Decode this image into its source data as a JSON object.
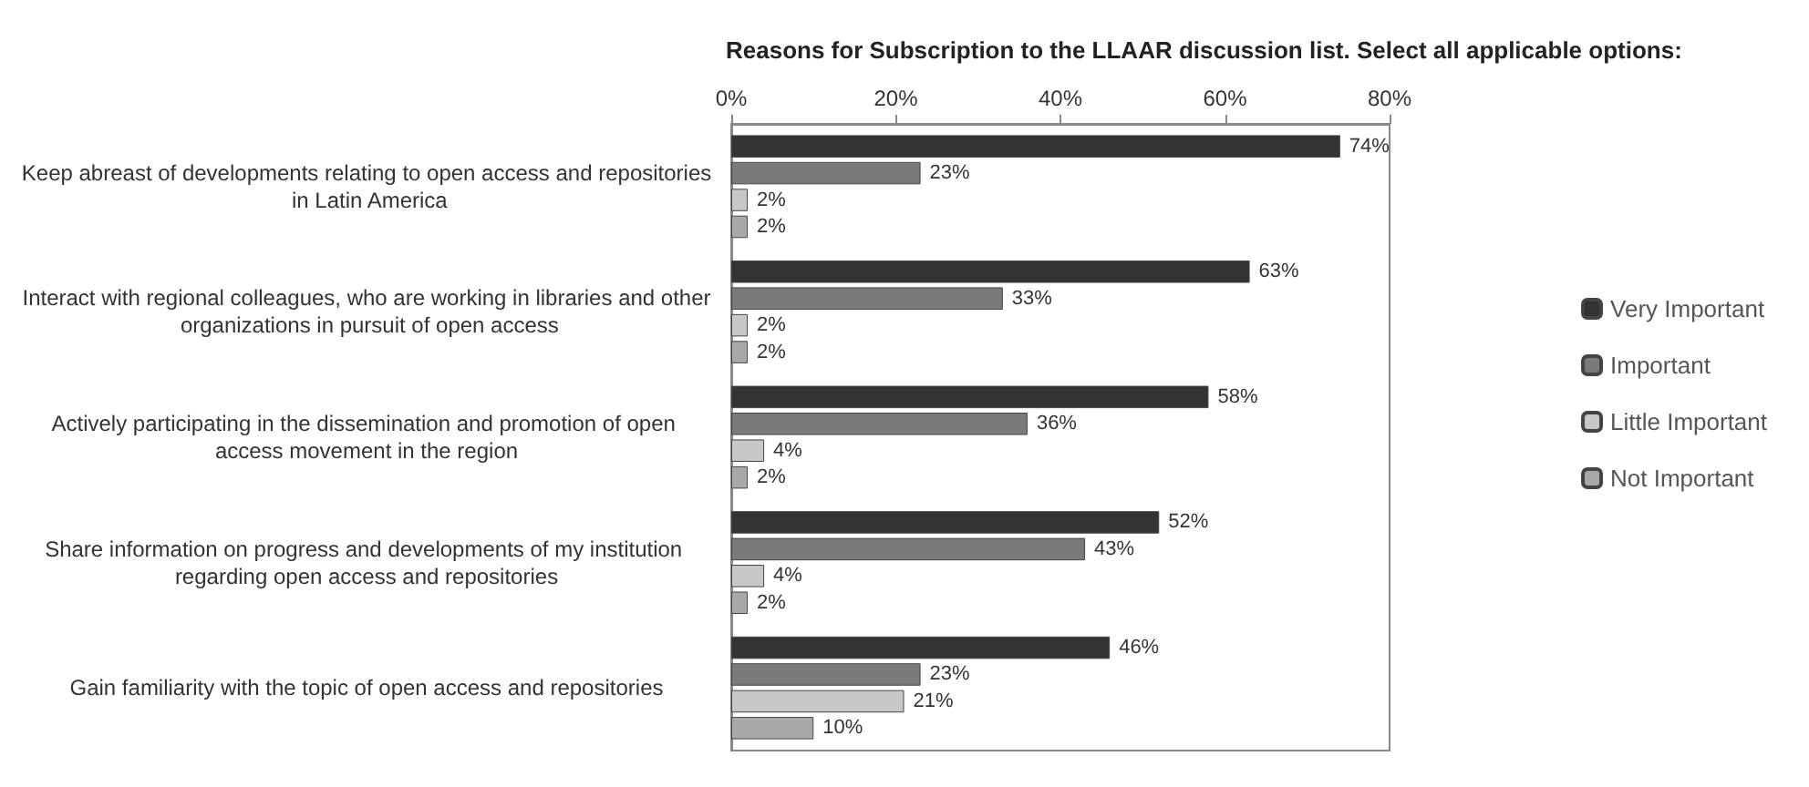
{
  "chart_data": {
    "type": "bar",
    "orientation": "horizontal",
    "title": "Reasons for Subscription to the LLAAR discussion list. Select all applicable options:",
    "categories": [
      "Keep abreast of developments relating to open access and repositories in Latin America",
      "Interact with regional colleagues, who are working in libraries and other organizations in pursuit of open access",
      "Actively participating in the dissemination and promotion of open access movement in the region",
      "Share information on progress and developments of my institution regarding open access and repositories",
      "Gain familiarity with the topic of open access and repositories"
    ],
    "series": [
      {
        "name": "Very Important",
        "color": "#333333",
        "values": [
          74,
          63,
          58,
          52,
          46
        ],
        "value_labels": [
          "74%",
          "63%",
          "58%",
          "52%",
          "46%"
        ]
      },
      {
        "name": "Important",
        "color": "#7a7a7a",
        "values": [
          23,
          33,
          36,
          43,
          23
        ],
        "value_labels": [
          "23%",
          "33%",
          "36%",
          "43%",
          "23%"
        ]
      },
      {
        "name": "Little Important",
        "color": "#c8c8c8",
        "values": [
          2,
          2,
          4,
          4,
          21
        ],
        "value_labels": [
          "2%",
          "2%",
          "4%",
          "4%",
          "21%"
        ]
      },
      {
        "name": "Not Important",
        "color": "#a8a8a8",
        "values": [
          2,
          2,
          2,
          2,
          10
        ],
        "value_labels": [
          "2%",
          "2%",
          "2%",
          "2%",
          "10%"
        ]
      }
    ],
    "xlim": [
      0,
      80
    ],
    "xticks": [
      {
        "value": 0,
        "label": "0%"
      },
      {
        "value": 20,
        "label": "20%"
      },
      {
        "value": 40,
        "label": "40%"
      },
      {
        "value": 60,
        "label": "60%"
      },
      {
        "value": 80,
        "label": "80%"
      }
    ],
    "legend": "right",
    "grid": false
  }
}
